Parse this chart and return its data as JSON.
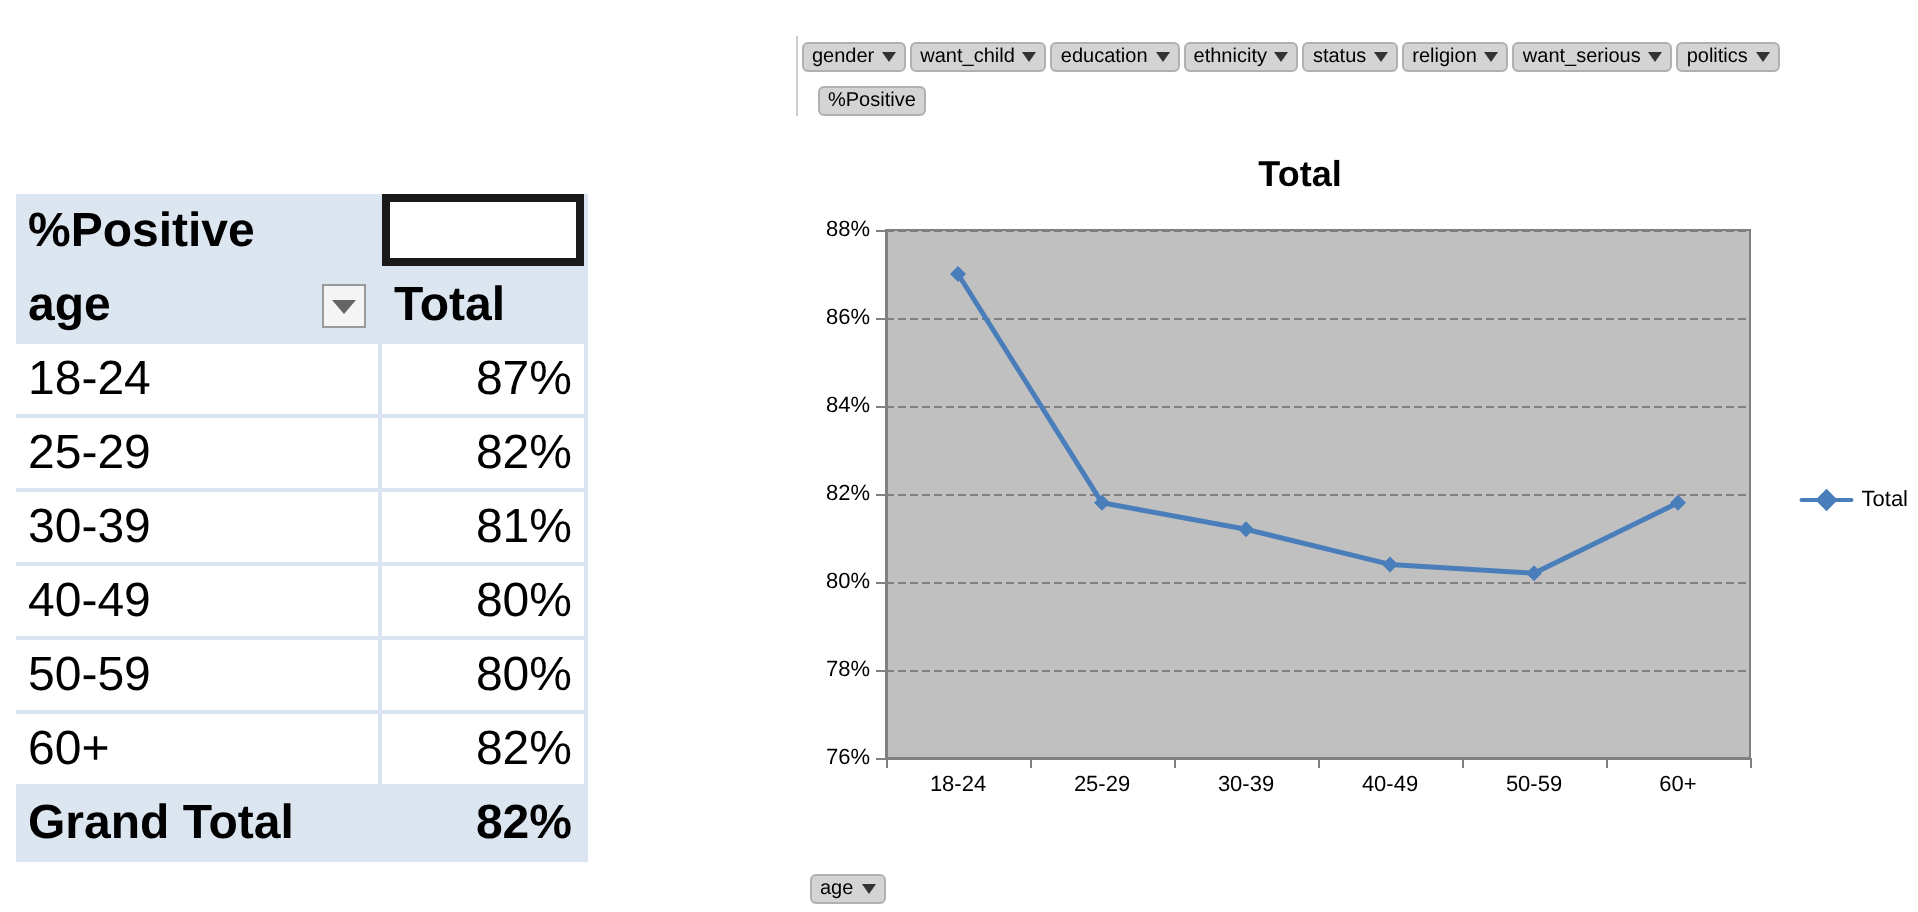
{
  "chart_data": {
    "type": "line",
    "title": "Total",
    "categories": [
      "18-24",
      "25-29",
      "30-39",
      "40-49",
      "50-59",
      "60+"
    ],
    "series": [
      {
        "name": "Total",
        "color": "#4a7ebb",
        "values": [
          87.0,
          81.8,
          81.2,
          80.4,
          80.2,
          81.8
        ]
      }
    ],
    "ylim": [
      76,
      88
    ],
    "yticks": [
      {
        "value": 76,
        "label": "76%"
      },
      {
        "value": 78,
        "label": "78%"
      },
      {
        "value": 80,
        "label": "80%"
      },
      {
        "value": 82,
        "label": "82%"
      },
      {
        "value": 84,
        "label": "84%"
      },
      {
        "value": 86,
        "label": "86%"
      },
      {
        "value": 88,
        "label": "88%"
      }
    ],
    "grid": "y",
    "legend": "right",
    "marker": "diamond",
    "line_style": "solid",
    "annotations": [
      "gender",
      "want_child",
      "education",
      "ethnicity",
      "status",
      "religion",
      "want_serious",
      "politics",
      "%Positive",
      "age",
      "%Positive",
      "age",
      "Total",
      "Grand Total",
      "82%",
      "87%",
      "82%",
      "81%",
      "80%",
      "80%",
      "82%"
    ]
  }
}
